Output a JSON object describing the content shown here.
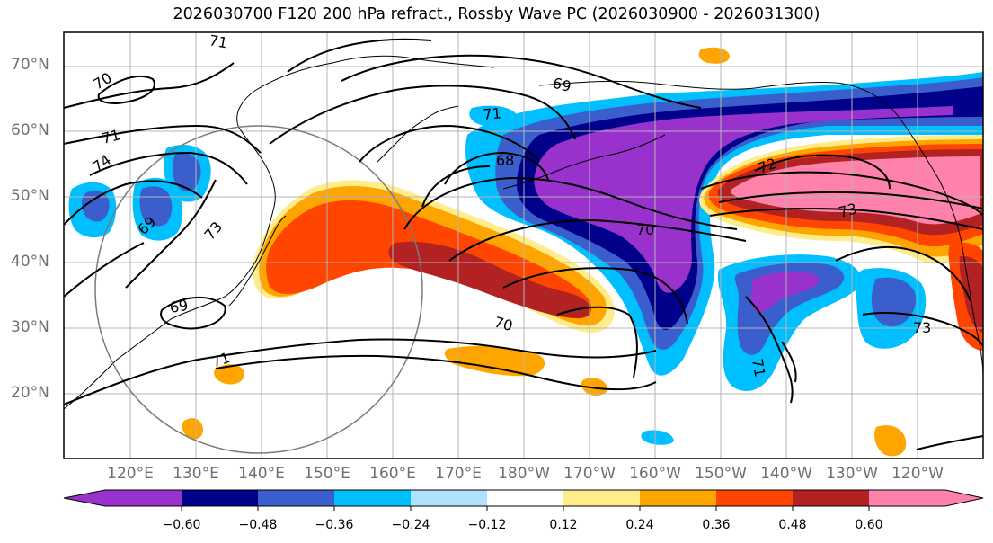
{
  "title": "2026030700 F120 200 hPa refract., Rossby Wave PC (2026030900 - 2026031300)",
  "lat_labels": [
    "70°N",
    "60°N",
    "50°N",
    "40°N",
    "30°N",
    "20°N"
  ],
  "lon_labels": [
    "120°E",
    "130°E",
    "140°E",
    "150°E",
    "160°E",
    "170°E",
    "180°W",
    "170°W",
    "160°W",
    "150°W",
    "140°W",
    "130°W",
    "120°W"
  ],
  "contour_labels": [
    "71",
    "70",
    "69",
    "71",
    "74",
    "71",
    "68",
    "72",
    "73",
    "70",
    "73",
    "69",
    "69",
    "70",
    "71",
    "73",
    "71"
  ],
  "colorbar": {
    "tick_labels": [
      "−0.60",
      "−0.48",
      "−0.36",
      "−0.24",
      "−0.12",
      "0.12",
      "0.24",
      "0.36",
      "0.48",
      "0.60"
    ],
    "colors": [
      "#9932CC",
      "#00008B",
      "#3A5FCD",
      "#00BFFF",
      "#B0E2FF",
      "#FFFFFF",
      "#FFEC8B",
      "#FFA500",
      "#FF4500",
      "#B22222",
      "#FF82AB"
    ]
  }
}
